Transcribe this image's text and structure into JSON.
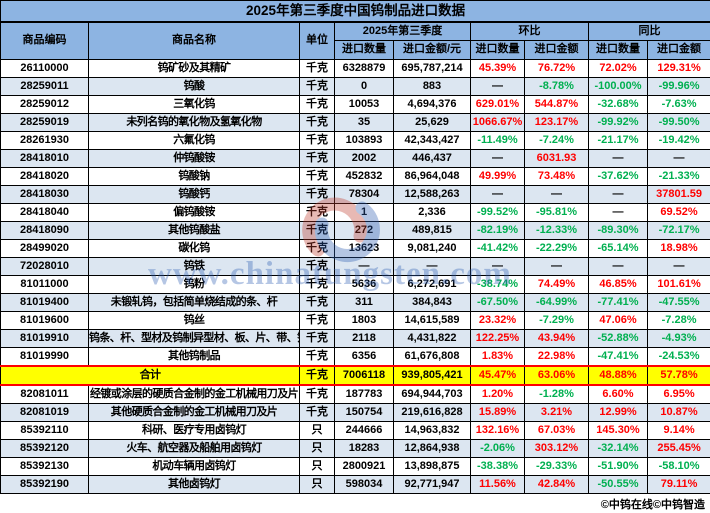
{
  "title": "2025年第三季度中国钨制品进口数据",
  "header": {
    "code": "商品编码",
    "name": "商品名称",
    "unit": "单位",
    "group_quarter": "2025年第三季度",
    "group_mom": "环比",
    "group_yoy": "同比",
    "qty": "进口数量",
    "amt_yuan": "进口金额/元",
    "amt": "进口金额"
  },
  "rows": [
    {
      "code": "26110000",
      "name": "钨矿砂及其精矿",
      "unit": "千克",
      "qty": "6328879",
      "amount": "695,787,214",
      "mom_qty": "45.39%",
      "mom_amt": "76.72%",
      "yoy_qty": "72.02%",
      "yoy_amt": "129.31%"
    },
    {
      "code": "28259011",
      "name": "钨酸",
      "unit": "千克",
      "qty": "0",
      "amount": "883",
      "mom_qty": "—",
      "mom_amt": "-8.78%",
      "yoy_qty": "-100.00%",
      "yoy_amt": "-99.96%"
    },
    {
      "code": "28259012",
      "name": "三氧化钨",
      "unit": "千克",
      "qty": "10053",
      "amount": "4,694,376",
      "mom_qty": "629.01%",
      "mom_amt": "544.87%",
      "yoy_qty": "-32.68%",
      "yoy_amt": "-7.63%"
    },
    {
      "code": "28259019",
      "name": "未列名钨的氧化物及氢氧化物",
      "unit": "千克",
      "qty": "35",
      "amount": "25,629",
      "mom_qty": "1066.67%",
      "mom_amt": "123.17%",
      "yoy_qty": "-99.92%",
      "yoy_amt": "-99.50%"
    },
    {
      "code": "28261930",
      "name": "六氟化钨",
      "unit": "千克",
      "qty": "103893",
      "amount": "42,343,427",
      "mom_qty": "-11.49%",
      "mom_amt": "-7.24%",
      "yoy_qty": "-21.17%",
      "yoy_amt": "-19.42%"
    },
    {
      "code": "28418010",
      "name": "仲钨酸铵",
      "unit": "千克",
      "qty": "2002",
      "amount": "446,437",
      "mom_qty": "—",
      "mom_amt": "6031.93",
      "yoy_qty": "—",
      "yoy_amt": "—"
    },
    {
      "code": "28418020",
      "name": "钨酸钠",
      "unit": "千克",
      "qty": "452832",
      "amount": "86,964,048",
      "mom_qty": "49.99%",
      "mom_amt": "73.48%",
      "yoy_qty": "-37.62%",
      "yoy_amt": "-21.33%"
    },
    {
      "code": "28418030",
      "name": "钨酸钙",
      "unit": "千克",
      "qty": "78304",
      "amount": "12,588,263",
      "mom_qty": "—",
      "mom_amt": "—",
      "yoy_qty": "—",
      "yoy_amt": "37801.59"
    },
    {
      "code": "28418040",
      "name": "偏钨酸铵",
      "unit": "千克",
      "qty": "1",
      "amount": "2,336",
      "mom_qty": "-99.52%",
      "mom_amt": "-95.81%",
      "yoy_qty": "—",
      "yoy_amt": "69.52%"
    },
    {
      "code": "28418090",
      "name": "其他钨酸盐",
      "unit": "千克",
      "qty": "272",
      "amount": "489,815",
      "mom_qty": "-82.19%",
      "mom_amt": "-12.33%",
      "yoy_qty": "-89.30%",
      "yoy_amt": "-72.17%"
    },
    {
      "code": "28499020",
      "name": "碳化钨",
      "unit": "千克",
      "qty": "13623",
      "amount": "9,081,240",
      "mom_qty": "-41.42%",
      "mom_amt": "-22.29%",
      "yoy_qty": "-65.14%",
      "yoy_amt": "18.98%"
    },
    {
      "code": "72028010",
      "name": "钨铁",
      "unit": "千克",
      "qty": "—",
      "amount": "—",
      "mom_qty": "—",
      "mom_amt": "—",
      "yoy_qty": "—",
      "yoy_amt": "—"
    },
    {
      "code": "81011000",
      "name": "钨粉",
      "unit": "千克",
      "qty": "5636",
      "amount": "6,272,691",
      "mom_qty": "-38.74%",
      "mom_amt": "74.49%",
      "yoy_qty": "46.85%",
      "yoy_amt": "101.61%"
    },
    {
      "code": "81019400",
      "name": "未锻轧钨，包括简单烧结成的条、杆",
      "unit": "千克",
      "qty": "311",
      "amount": "384,843",
      "mom_qty": "-67.50%",
      "mom_amt": "-64.99%",
      "yoy_qty": "-77.41%",
      "yoy_amt": "-47.55%"
    },
    {
      "code": "81019600",
      "name": "钨丝",
      "unit": "千克",
      "qty": "1803",
      "amount": "14,615,589",
      "mom_qty": "23.32%",
      "mom_amt": "-7.29%",
      "yoy_qty": "47.06%",
      "yoy_amt": "-7.28%"
    },
    {
      "code": "81019910",
      "name": "钨条、杆、型材及钨制异型材、板、片、带、箔",
      "unit": "千克",
      "qty": "2118",
      "amount": "4,431,822",
      "mom_qty": "122.25%",
      "mom_amt": "43.94%",
      "yoy_qty": "-52.88%",
      "yoy_amt": "-4.93%"
    },
    {
      "code": "81019990",
      "name": "其他钨制品",
      "unit": "千克",
      "qty": "6356",
      "amount": "61,676,808",
      "mom_qty": "1.83%",
      "mom_amt": "22.98%",
      "yoy_qty": "-47.41%",
      "yoy_amt": "-24.53%"
    },
    {
      "total": true,
      "name": "合计",
      "unit": "千克",
      "qty": "7006118",
      "amount": "939,805,421",
      "mom_qty": "45.47%",
      "mom_amt": "63.06%",
      "yoy_qty": "48.88%",
      "yoy_amt": "57.78%"
    },
    {
      "code": "82081011",
      "name": "经镀或涂层的硬质合金制的金工机械用刀及片",
      "unit": "千克",
      "qty": "187783",
      "amount": "694,944,703",
      "mom_qty": "1.20%",
      "mom_amt": "-1.28%",
      "yoy_qty": "6.60%",
      "yoy_amt": "6.95%"
    },
    {
      "code": "82081019",
      "name": "其他硬质合金制的金工机械用刀及片",
      "unit": "千克",
      "qty": "150754",
      "amount": "219,616,828",
      "mom_qty": "15.89%",
      "mom_amt": "3.21%",
      "yoy_qty": "12.99%",
      "yoy_amt": "10.87%"
    },
    {
      "code": "85392110",
      "name": "科研、医疗专用卤钨灯",
      "unit": "只",
      "qty": "244666",
      "amount": "14,963,832",
      "mom_qty": "132.16%",
      "mom_amt": "67.03%",
      "yoy_qty": "145.30%",
      "yoy_amt": "9.14%"
    },
    {
      "code": "85392120",
      "name": "火车、航空器及船舶用卤钨灯",
      "unit": "只",
      "qty": "18283",
      "amount": "12,864,938",
      "mom_qty": "-2.06%",
      "mom_amt": "303.12%",
      "yoy_qty": "-32.14%",
      "yoy_amt": "255.45%"
    },
    {
      "code": "85392130",
      "name": "机动车辆用卤钨灯",
      "unit": "只",
      "qty": "2800921",
      "amount": "13,898,875",
      "mom_qty": "-38.38%",
      "mom_amt": "-29.33%",
      "yoy_qty": "-51.90%",
      "yoy_amt": "-58.10%"
    },
    {
      "code": "85392190",
      "name": "其他卤钨灯",
      "unit": "只",
      "qty": "598034",
      "amount": "92,771,947",
      "mom_qty": "11.56%",
      "mom_amt": "42.84%",
      "yoy_qty": "-50.55%",
      "yoy_amt": "79.11%"
    }
  ],
  "watermark": {
    "text": "www.chinatungsten.com"
  },
  "footer": "©中钨在线©中钨智造",
  "colors": {
    "header_bg": "#8DB4E2",
    "band_bg": "#DCE6F1",
    "total_bg": "#FFFF00",
    "total_border": "#FF0000",
    "up": "#FF0000",
    "down": "#00B050",
    "watermark": "#2B5CB1"
  }
}
